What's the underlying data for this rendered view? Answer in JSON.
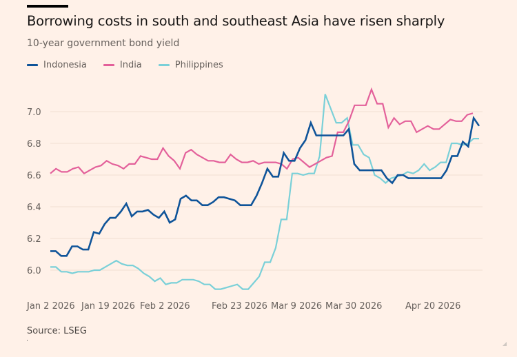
{
  "header": {
    "title": "Borrowing costs in south and southeast Asia have risen sharply",
    "subtitle": "10-year government bond yield"
  },
  "footer": {
    "source": "Source: LSEG"
  },
  "chart_data": {
    "type": "line",
    "title": "Borrowing costs in south and southeast Asia have risen sharply",
    "subtitle": "10-year government bond yield",
    "xlabel": "",
    "ylabel": "",
    "ylim": [
      5.85,
      7.15
    ],
    "yticks": [
      "6.0",
      "6.2",
      "6.4",
      "6.6",
      "6.8",
      "7.0"
    ],
    "ytick_values": [
      6.0,
      6.2,
      6.4,
      6.6,
      6.8,
      7.0
    ],
    "grid": true,
    "legend_position": "top-left",
    "x_tick_labels": [
      "Jan 2 2026",
      "Jan 19 2026",
      "Feb 2 2026",
      "Feb 23 2026",
      "Mar 9 2026",
      "Mar 30 2026",
      "Apr 20 2026"
    ],
    "x_tick_index": [
      0,
      11,
      21,
      36,
      46,
      61,
      76
    ],
    "n_points": 87,
    "series": [
      {
        "name": "Indonesia",
        "color": "#0f5499",
        "values": [
          6.12,
          6.12,
          6.09,
          6.09,
          6.15,
          6.15,
          6.13,
          6.13,
          6.24,
          6.23,
          6.29,
          6.33,
          6.33,
          6.37,
          6.42,
          6.34,
          6.37,
          6.37,
          6.38,
          6.35,
          6.33,
          6.37,
          6.3,
          6.32,
          6.45,
          6.47,
          6.44,
          6.44,
          6.41,
          6.41,
          6.43,
          6.46,
          6.46,
          6.45,
          6.44,
          6.41,
          6.41,
          6.41,
          6.47,
          6.55,
          6.64,
          6.59,
          6.59,
          6.74,
          6.69,
          6.69,
          6.77,
          6.82,
          6.93,
          6.85,
          6.85,
          6.85,
          6.85,
          6.85,
          6.85,
          6.89,
          6.67,
          6.63,
          6.63,
          6.63,
          6.63,
          6.63,
          6.58,
          6.55,
          6.6,
          6.6,
          6.58,
          6.58,
          6.58,
          6.58,
          6.58,
          6.58,
          6.58,
          6.63,
          6.72,
          6.72,
          6.81,
          6.78,
          6.96,
          6.91
        ]
      },
      {
        "name": "India",
        "color": "#e3609a",
        "values": [
          6.61,
          6.64,
          6.62,
          6.62,
          6.64,
          6.65,
          6.61,
          6.63,
          6.65,
          6.66,
          6.69,
          6.67,
          6.66,
          6.64,
          6.67,
          6.67,
          6.72,
          6.71,
          6.7,
          6.7,
          6.77,
          6.72,
          6.69,
          6.64,
          6.74,
          6.76,
          6.73,
          6.71,
          6.69,
          6.69,
          6.68,
          6.68,
          6.73,
          6.7,
          6.68,
          6.68,
          6.69,
          6.67,
          6.68,
          6.68,
          6.68,
          6.67,
          6.64,
          6.7,
          6.71,
          6.68,
          6.65,
          6.67,
          6.69,
          6.71,
          6.72,
          6.87,
          6.87,
          6.94,
          7.04,
          7.04,
          7.04,
          7.14,
          7.05,
          7.05,
          6.9,
          6.96,
          6.92,
          6.94,
          6.94,
          6.87,
          6.89,
          6.91,
          6.89,
          6.89,
          6.92,
          6.95,
          6.94,
          6.94,
          6.98,
          6.99
        ]
      },
      {
        "name": "Philippines",
        "color": "#7ad0d8",
        "values": [
          6.02,
          6.02,
          5.99,
          5.99,
          5.98,
          5.99,
          5.99,
          5.99,
          6.0,
          6.0,
          6.02,
          6.04,
          6.06,
          6.04,
          6.03,
          6.03,
          6.01,
          5.98,
          5.96,
          5.93,
          5.95,
          5.91,
          5.92,
          5.92,
          5.94,
          5.94,
          5.94,
          5.93,
          5.91,
          5.91,
          5.88,
          5.88,
          5.89,
          5.9,
          5.91,
          5.88,
          5.88,
          5.92,
          5.96,
          6.05,
          6.05,
          6.14,
          6.32,
          6.32,
          6.61,
          6.61,
          6.6,
          6.61,
          6.61,
          6.72,
          7.11,
          7.02,
          6.93,
          6.93,
          6.96,
          6.79,
          6.79,
          6.73,
          6.71,
          6.6,
          6.58,
          6.55,
          6.58,
          6.59,
          6.6,
          6.62,
          6.61,
          6.63,
          6.67,
          6.63,
          6.65,
          6.68,
          6.68,
          6.8,
          6.8,
          6.79,
          6.8,
          6.83,
          6.83
        ]
      }
    ]
  }
}
